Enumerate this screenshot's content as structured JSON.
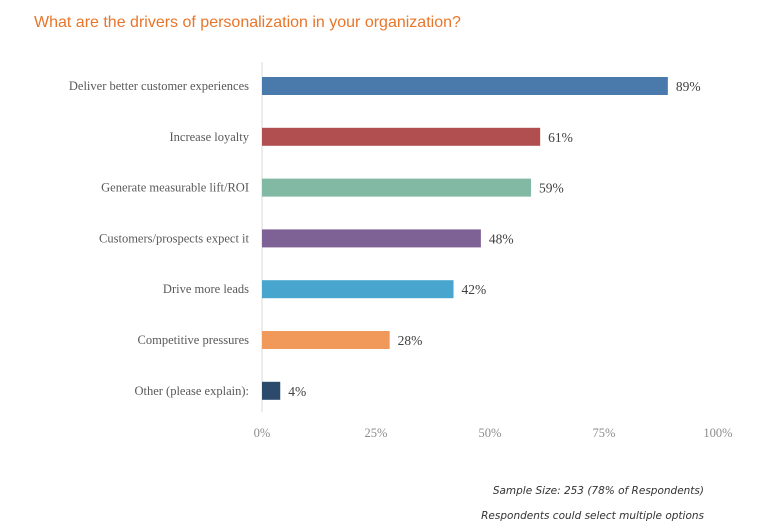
{
  "chart_data": {
    "type": "bar",
    "orientation": "horizontal",
    "title": "What are the drivers of personalization in your organization?",
    "categories": [
      "Deliver better customer experiences",
      "Increase loyalty",
      "Generate measurable lift/ROI",
      "Customers/prospects expect it",
      "Drive more leads",
      "Competitive pressures",
      "Other (please explain):"
    ],
    "values": [
      89,
      61,
      59,
      48,
      42,
      28,
      4
    ],
    "value_labels": [
      "89%",
      "61%",
      "59%",
      "48%",
      "42%",
      "28%",
      "4%"
    ],
    "colors": [
      "#4a7aab",
      "#b04e50",
      "#82b9a5",
      "#7f6295",
      "#48a6ce",
      "#f0995a",
      "#2c4a6b"
    ],
    "xlim": [
      0,
      100
    ],
    "xticks": [
      0,
      25,
      50,
      75,
      100
    ],
    "xtick_labels": [
      "0%",
      "25%",
      "50%",
      "75%",
      "100%"
    ],
    "xlabel": "",
    "ylabel": "",
    "grid": false
  },
  "notes": {
    "sample_size": "Sample Size: 253 (78% of Respondents)",
    "multiple": "Respondents could select multiple options"
  }
}
